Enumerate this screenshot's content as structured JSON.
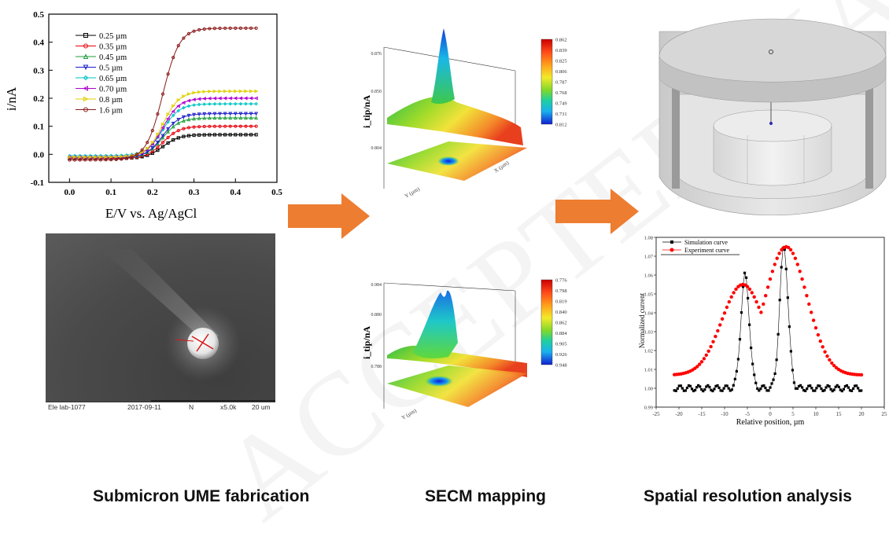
{
  "cv_chart": {
    "xlabel": "E/V vs. Ag/AgCl",
    "ylabel": "i/nA",
    "xticks": [
      "0.0",
      "0.1",
      "0.2",
      "0.3",
      "0.4",
      "0.5"
    ],
    "yticks": [
      "-0.1",
      "0.0",
      "0.1",
      "0.2",
      "0.3",
      "0.4",
      "0.5"
    ],
    "legend": [
      "0.25 µm",
      "0.35 µm",
      "0.45 µm",
      "0.5 µm",
      "0.65 µm",
      "0.70 µm",
      "0.8 µm",
      "1.6 µm"
    ]
  },
  "chart_data": [
    {
      "type": "line",
      "xlabel": "E/V vs. Ag/AgCl",
      "ylabel": "i/nA",
      "xlim": [
        -0.05,
        0.5
      ],
      "ylim": [
        -0.1,
        0.5
      ],
      "x": [
        0.0,
        0.05,
        0.1,
        0.15,
        0.2,
        0.25,
        0.3,
        0.35,
        0.4,
        0.45
      ],
      "series": [
        {
          "name": "0.25 µm",
          "color": "#000000",
          "marker": "square",
          "plateau": 0.07,
          "base": -0.015
        },
        {
          "name": "0.35 µm",
          "color": "#e8000b",
          "marker": "circle",
          "plateau": 0.1,
          "base": -0.015
        },
        {
          "name": "0.45 µm",
          "color": "#1f9e3a",
          "marker": "triangle",
          "plateau": 0.13,
          "base": -0.012
        },
        {
          "name": "0.5 µm",
          "color": "#1c1cc8",
          "marker": "triangle-down",
          "plateau": 0.145,
          "base": -0.012
        },
        {
          "name": "0.65 µm",
          "color": "#00c4c4",
          "marker": "diamond",
          "plateau": 0.18,
          "base": -0.005
        },
        {
          "name": "0.70 µm",
          "color": "#b000d0",
          "marker": "triangle-left",
          "plateau": 0.2,
          "base": -0.01
        },
        {
          "name": "0.8 µm",
          "color": "#e0d000",
          "marker": "triangle-right",
          "plateau": 0.225,
          "base": -0.01
        },
        {
          "name": "1.6 µm",
          "color": "#8b1a1a",
          "marker": "hexagon",
          "plateau": 0.45,
          "base": -0.02
        }
      ]
    },
    {
      "type": "scatter",
      "xlabel": "Relative position, µm",
      "ylabel": "Normalized current",
      "xlim": [
        -25,
        25
      ],
      "ylim": [
        0.99,
        1.08
      ],
      "xticks": [
        "-25",
        "-20",
        "-15",
        "-10",
        "-5",
        "0",
        "5",
        "10",
        "15",
        "20",
        "25"
      ],
      "yticks": [
        "0.99",
        "1.00",
        "1.01",
        "1.02",
        "1.03",
        "1.04",
        "1.05",
        "1.06",
        "1.07",
        "1.08"
      ],
      "series": [
        {
          "name": "Simulation curve",
          "color": "#000000",
          "marker": "square",
          "peaks": [
            [
              -5.5,
              1.06
            ],
            [
              3,
              1.075
            ]
          ],
          "base": 1.0
        },
        {
          "name": "Experiment curve",
          "color": "#ff0000",
          "marker": "circle",
          "peaks": [
            [
              -6,
              1.055
            ],
            [
              3.5,
              1.075
            ]
          ],
          "base": 1.007
        }
      ]
    }
  ],
  "secm_top": {
    "zlabel": "i_tip/nA",
    "colorbar": [
      "0.862",
      "0.839",
      "0.825",
      "0.806",
      "0.787",
      "0.768",
      "0.749",
      "0.731",
      "0.812"
    ],
    "zticks": [
      "0.876",
      "0.850",
      "0.804"
    ],
    "axis_y": "Y (µm)",
    "axis_x": "X (µm)"
  },
  "secm_bottom": {
    "zlabel": "i_tip/nA",
    "colorbar": [
      "0.776",
      "0.798",
      "0.819",
      "0.840",
      "0.862",
      "0.884",
      "0.905",
      "0.926",
      "0.948"
    ],
    "zticks": [
      "0.984",
      "0.880",
      "0.788"
    ],
    "axis_y": "Y (µm)"
  },
  "sem": {
    "label": "Ele lab-1077",
    "date": "2017-09-11",
    "mode": "N",
    "mag": "x5.0k",
    "scale": "20 um"
  },
  "captions": {
    "left": "Submicron UME fabrication",
    "middle": "SECM mapping",
    "right": "Spatial resolution analysis"
  },
  "watermark": "ACCEPTED MANUSCRIPT",
  "colors": {
    "arrow": "#ed7d31",
    "caption": "#111111"
  }
}
